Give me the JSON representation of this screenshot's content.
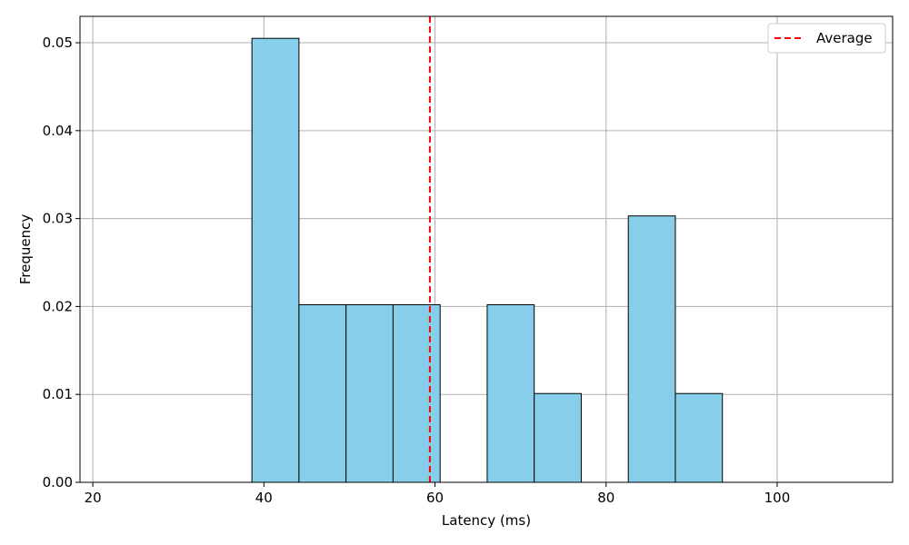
{
  "chart_data": {
    "type": "histogram",
    "title": "",
    "xlabel": "Latency (ms)",
    "ylabel": "Frequency",
    "xlim": [
      18.5,
      113.5
    ],
    "ylim": [
      0,
      0.053
    ],
    "xticks": [
      20,
      40,
      60,
      80,
      100
    ],
    "yticks": [
      0.0,
      0.01,
      0.02,
      0.03,
      0.04,
      0.05
    ],
    "xtick_labels": [
      "20",
      "40",
      "60",
      "80",
      "100"
    ],
    "ytick_labels": [
      "0.00",
      "0.01",
      "0.02",
      "0.03",
      "0.04",
      "0.05"
    ],
    "grid": true,
    "bins": [
      {
        "x0": 38.6,
        "x1": 44.1,
        "value": 0.0505
      },
      {
        "x0": 44.1,
        "x1": 49.6,
        "value": 0.0202
      },
      {
        "x0": 49.6,
        "x1": 55.1,
        "value": 0.0202
      },
      {
        "x0": 55.1,
        "x1": 60.6,
        "value": 0.0202
      },
      {
        "x0": 60.6,
        "x1": 66.1,
        "value": 0.0
      },
      {
        "x0": 66.1,
        "x1": 71.6,
        "value": 0.0202
      },
      {
        "x0": 71.6,
        "x1": 77.1,
        "value": 0.0101
      },
      {
        "x0": 77.1,
        "x1": 82.6,
        "value": 0.0
      },
      {
        "x0": 82.6,
        "x1": 88.1,
        "value": 0.0303
      },
      {
        "x0": 88.1,
        "x1": 93.6,
        "value": 0.0101
      }
    ],
    "average": 59.4,
    "legend": [
      {
        "label": "Average",
        "style": "dashed",
        "color": "#ff0000"
      }
    ],
    "legend_position": "top-right",
    "bar_color": "#87ceeb",
    "bar_edge_color": "#000000"
  }
}
